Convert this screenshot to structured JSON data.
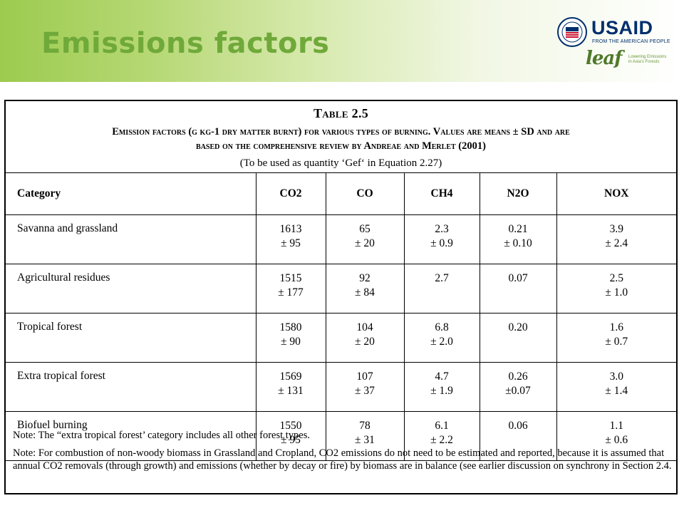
{
  "slide": {
    "title": "Emissions factors"
  },
  "logos": {
    "usaid": "USAID",
    "usaid_tagline": "FROM THE AMERICAN PEOPLE",
    "leaf": "leaf",
    "leaf_tagline_line1": "Lowering Emissions",
    "leaf_tagline_line2": "in Asia's Forests"
  },
  "table": {
    "title": "Table 2.5",
    "caption_line1": "Emission factors (g kg-1 dry matter burnt) for various types of burning. Values are means ± SD and are",
    "caption_line2": "based on the comprehensive review by Andreae and Merlet (2001)",
    "caption_note": "(To be used as quantity ‘Gef‘ in Equation 2.27)",
    "headers": [
      "Category",
      "CO2",
      "CO",
      "CH4",
      "N2O",
      "NOX"
    ],
    "rows": [
      {
        "category": "Savanna and grassland",
        "values": [
          [
            "1613",
            "± 95"
          ],
          [
            "65",
            "± 20"
          ],
          [
            "2.3",
            "± 0.9"
          ],
          [
            "0.21",
            "± 0.10"
          ],
          [
            "3.9",
            "± 2.4"
          ]
        ]
      },
      {
        "category": "Agricultural residues",
        "values": [
          [
            "1515",
            "± 177"
          ],
          [
            "92",
            "± 84"
          ],
          [
            "2.7",
            ""
          ],
          [
            "0.07",
            ""
          ],
          [
            "2.5",
            "± 1.0"
          ]
        ]
      },
      {
        "category": "Tropical forest",
        "values": [
          [
            "1580",
            "± 90"
          ],
          [
            "104",
            "± 20"
          ],
          [
            "6.8",
            "± 2.0"
          ],
          [
            "0.20",
            ""
          ],
          [
            "1.6",
            "± 0.7"
          ]
        ]
      },
      {
        "category": "Extra tropical forest",
        "values": [
          [
            "1569",
            "± 131"
          ],
          [
            "107",
            "± 37"
          ],
          [
            "4.7",
            "± 1.9"
          ],
          [
            "0.26",
            "±0.07"
          ],
          [
            "3.0",
            "± 1.4"
          ]
        ]
      },
      {
        "category": "Biofuel burning",
        "values": [
          [
            "1550",
            "± 95"
          ],
          [
            "78",
            "± 31"
          ],
          [
            "6.1",
            "± 2.2"
          ],
          [
            "0.06",
            ""
          ],
          [
            "1.1",
            "± 0.6"
          ]
        ]
      }
    ],
    "note1": "Note: The “extra tropical forest’ category includes all other forest types.",
    "note2": "Note: For combustion of non-woody biomass in Grassland and Cropland, CO2 emissions do not need to be estimated and reported, because it is assumed that annual CO2 removals (through growth) and emissions (whether by decay or fire) by biomass are in balance (see earlier discussion on synchrony in Section 2.4."
  }
}
